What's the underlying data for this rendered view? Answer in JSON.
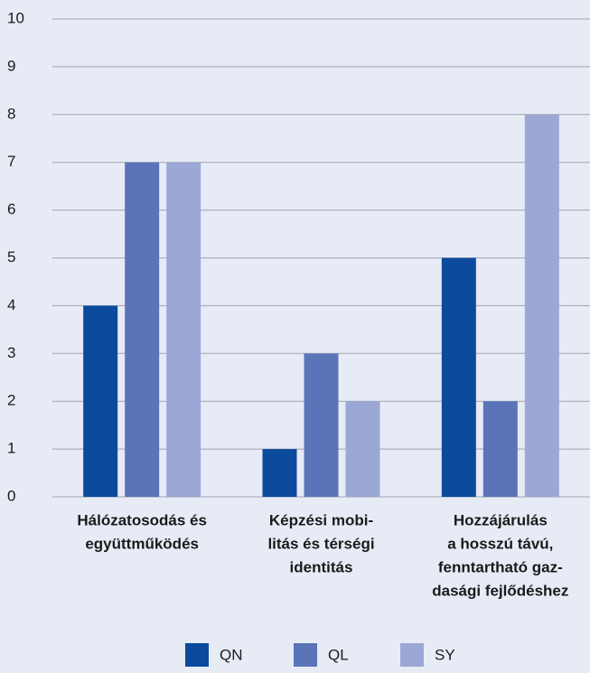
{
  "chart_data": {
    "type": "bar",
    "categories": [
      [
        "Hálózatosodás és",
        "együttműködés"
      ],
      [
        "Képzési mobi-",
        "litás és térségi",
        "identitás"
      ],
      [
        "Hozzájárulás",
        "a hosszú távú,",
        "fenntartható gaz-",
        "dasági fejlődéshez"
      ]
    ],
    "series": [
      {
        "name": "QN",
        "color": "#0b4a9d",
        "values": [
          4,
          1,
          5
        ]
      },
      {
        "name": "QL",
        "color": "#5b74b8",
        "values": [
          7,
          3,
          2
        ]
      },
      {
        "name": "SY",
        "color": "#9ba7d4",
        "values": [
          7,
          2,
          8
        ]
      }
    ],
    "ylim": [
      0,
      10
    ],
    "yticks": [
      0,
      1,
      2,
      3,
      4,
      5,
      6,
      7,
      8,
      9,
      10
    ],
    "grid": true,
    "legend": "bottom"
  }
}
